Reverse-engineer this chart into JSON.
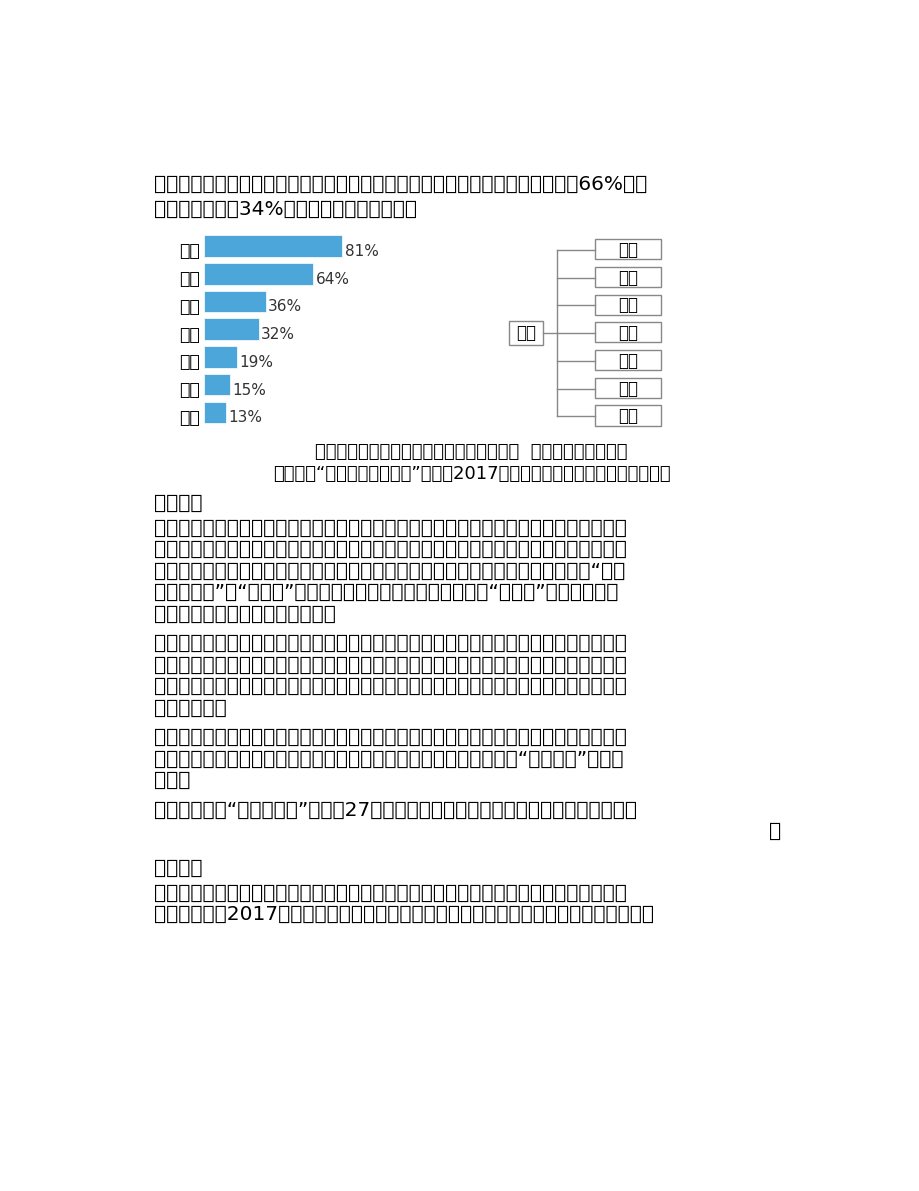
{
  "page_bg": "#ffffff",
  "text_color": "#000000",
  "bar_color": "#4da6d9",
  "top_text_lines": [
    "的专业；选择政治、历史、地理组合的考生，都是传统意义上的文科生，可选考66%的专",
    "业，比现行高考34%的选择面，高出近一倍。"
  ],
  "bar_categories": [
    "物理",
    "化学",
    "技术",
    "生物",
    "历史",
    "地理",
    "政治"
  ],
  "bar_values": [
    81,
    64,
    36,
    32,
    19,
    15,
    13
  ],
  "bar_labels": [
    "81%",
    "64%",
    "36%",
    "32%",
    "19%",
    "15%",
    "13%"
  ],
  "tree_items": [
    "物理",
    "化学",
    "技术",
    "生物",
    "历史",
    "地理",
    "政治"
  ],
  "tree_root": "考生",
  "caption_line1": "各高校专业（类）提出选考科目要求的比例  各科目考生选考比例",
  "caption_line2": "（摘编自“浙江省教育考试网”刊文《2017年浙江省高考选科组合报考统计》）",
  "section3_title": "材料三：",
  "section3_para1_lines": [
    "　　国务院发布的《关于深化考试招生制度改革的实施意见》提出，探索基于统一高考和",
    "高中学业水平考试成绩、参考综合素质评价的多元录取机制。改革后，学生在校成绩以及",
    "综合素质将成为重要的录取依据和参考。根据河南省高考方案，高考招生录取基于“两依",
    "据、一参考”。“两依据”是指统一高考和学业水平考试成绩。“一参考”就是指把综合",
    "素质评价作为招生录取参考条件。"
  ],
  "section3_para2_lines": [
    "　　以河南为例，有专家指出，河南版的《综合素质评价实施办法》在评价内容上，思想",
    "品德、学业水平、身心健康、艺术素养、社会实践五大方面与教育部保持高度一致。但也",
    "有其特色，例如在思想品德方面，增加了违规违纪和有无违法情况的评价内容，便于学校",
    "管理与记录。"
  ],
  "section3_para3_lines": [
    "　　不只河南，全国多省份都明确将综合素质纳入到学生录取的重要参考因素。专家认为",
    "，综合素质评价是促进学生德智体美全面发展、培养个性特长、扭转“唯分数论”的重要",
    "举措。"
  ],
  "section3_source_lines": [
    "　　（摘编自“中国新闻网”刊文《27省份高考改革方案出炉综合素质成录取重要参考》",
    "）"
  ],
  "section4_title": "材料四：",
  "section4_para1_lines": [
    "　　绝大多数省级行政区域均明确要逐步减少、合并乃至取消录取批次。浙江从新高考首",
    "届学生毕业的2017年起，除特殊类型（自主招生、综合评价招生、定向招生等）提前录取"
  ]
}
